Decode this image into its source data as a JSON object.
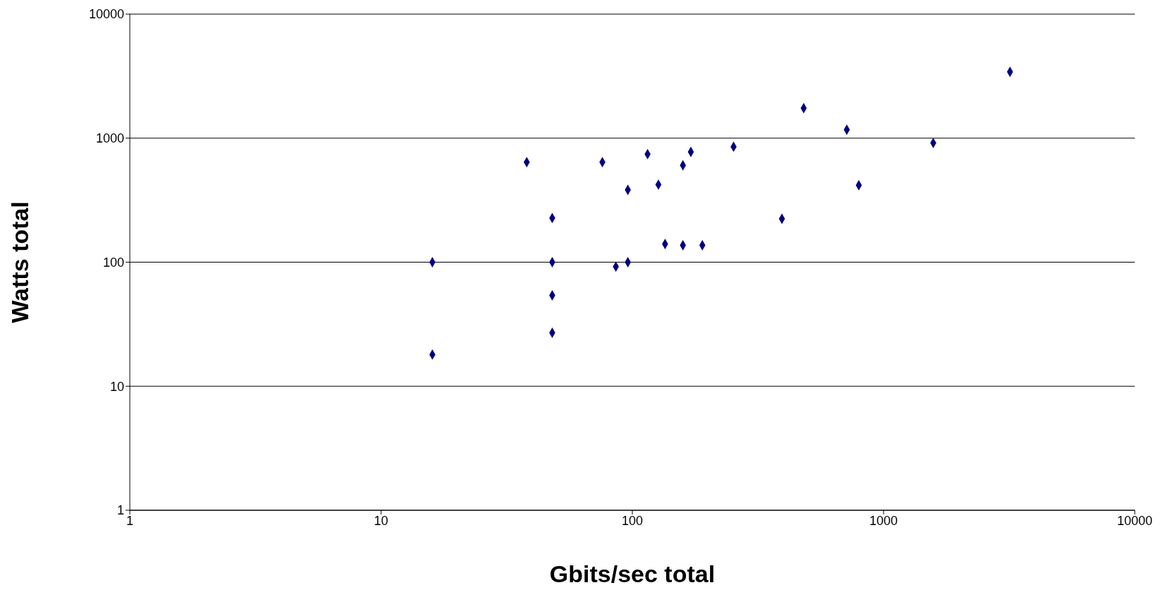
{
  "chart_data": {
    "type": "scatter",
    "xlabel": "Gbits/sec total",
    "ylabel": "Watts total",
    "log": "xy",
    "grid": "y",
    "marker": "diamond",
    "legend": false,
    "xlim": [
      1,
      10000
    ],
    "xticks": [
      1,
      10,
      100,
      1000,
      10000
    ],
    "ylim": [
      1,
      10000
    ],
    "yticks": [
      1,
      10,
      100,
      1000,
      10000
    ],
    "series": [
      {
        "color": "#000080",
        "x": [
          16,
          16,
          38,
          48,
          48,
          48,
          48,
          76,
          86,
          96,
          96,
          115,
          127,
          135,
          159,
          159,
          171,
          190,
          253,
          394,
          481,
          714,
          797,
          1577,
          3186
        ],
        "values": [
          100,
          18,
          640,
          227,
          100,
          54,
          27,
          640,
          92,
          100,
          383,
          743,
          422,
          140,
          137,
          604,
          774,
          137,
          853,
          224,
          1745,
          1170,
          417,
          914,
          3427
        ]
      }
    ]
  }
}
